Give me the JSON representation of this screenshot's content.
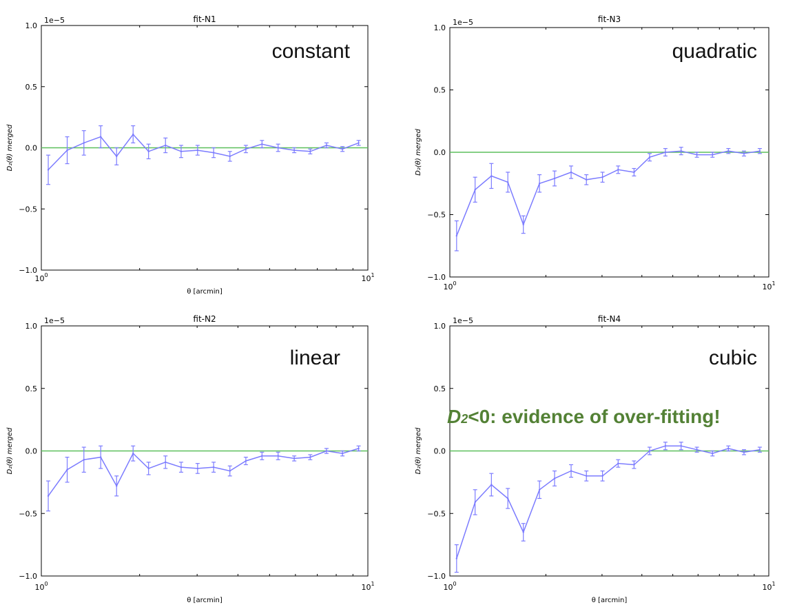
{
  "colors": {
    "series": "#7b7bff",
    "zero_line": "#5cbf5c",
    "axes": "#000000",
    "note": "#538135"
  },
  "note": {
    "symbol": "D",
    "subscript": "2",
    "text": "<0: evidence of over-fitting!"
  },
  "chart_data": [
    {
      "id": "fit-N1",
      "type": "line",
      "title": "fit-N1",
      "label": "constant",
      "xlabel": "θ [arcmin]",
      "ylabel": "D₂(θ) merged",
      "exponent": "1e−5",
      "xscale": "log",
      "xlim": [
        1,
        10
      ],
      "ylim": [
        -1.0,
        1.0
      ],
      "yticks": [
        "−1.0",
        "−0.5",
        "0.0",
        "0.5",
        "1.0"
      ],
      "xticks": [
        {
          "base": "10",
          "exp": "0"
        },
        {
          "base": "10",
          "exp": "1"
        }
      ],
      "x": [
        1.05,
        1.2,
        1.35,
        1.52,
        1.7,
        1.91,
        2.13,
        2.4,
        2.68,
        3.01,
        3.37,
        3.78,
        4.23,
        4.74,
        5.31,
        5.95,
        6.66,
        7.47,
        8.36,
        9.37
      ],
      "y": [
        -0.18,
        -0.02,
        0.04,
        0.09,
        -0.07,
        0.11,
        -0.03,
        0.02,
        -0.03,
        -0.02,
        -0.04,
        -0.07,
        -0.01,
        0.03,
        0.0,
        -0.02,
        -0.03,
        0.02,
        -0.01,
        0.04
      ],
      "yerr": [
        0.12,
        0.11,
        0.1,
        0.09,
        0.07,
        0.07,
        0.06,
        0.06,
        0.05,
        0.04,
        0.04,
        0.04,
        0.03,
        0.03,
        0.03,
        0.02,
        0.02,
        0.02,
        0.02,
        0.02
      ],
      "hline": 0.0
    },
    {
      "id": "fit-N3",
      "type": "line",
      "title": "fit-N3",
      "label": "quadratic",
      "xlabel": "",
      "ylabel": "D₂(θ) merged",
      "exponent": "1e−5",
      "xscale": "log",
      "xlim": [
        1,
        10
      ],
      "ylim": [
        -1.0,
        1.0
      ],
      "yticks": [
        "−1.0",
        "−0.5",
        "0.0",
        "0.5",
        "1.0"
      ],
      "xticks": [
        {
          "base": "10",
          "exp": "0"
        },
        {
          "base": "10",
          "exp": "1"
        }
      ],
      "x": [
        1.05,
        1.2,
        1.35,
        1.52,
        1.7,
        1.91,
        2.13,
        2.4,
        2.68,
        3.01,
        3.37,
        3.78,
        4.23,
        4.74,
        5.31,
        5.95,
        6.66,
        7.47,
        8.36,
        9.37
      ],
      "y": [
        -0.67,
        -0.3,
        -0.19,
        -0.24,
        -0.58,
        -0.25,
        -0.21,
        -0.16,
        -0.22,
        -0.2,
        -0.14,
        -0.16,
        -0.04,
        0.0,
        0.01,
        -0.02,
        -0.02,
        0.01,
        -0.01,
        0.01
      ],
      "yerr": [
        0.12,
        0.1,
        0.1,
        0.08,
        0.07,
        0.07,
        0.06,
        0.05,
        0.04,
        0.04,
        0.03,
        0.03,
        0.03,
        0.03,
        0.03,
        0.02,
        0.02,
        0.02,
        0.02,
        0.02
      ],
      "hline": 0.0
    },
    {
      "id": "fit-N2",
      "type": "line",
      "title": "fit-N2",
      "label": "linear",
      "xlabel": "θ [arcmin]",
      "ylabel": "D₂(θ) merged",
      "exponent": "1e−5",
      "xscale": "log",
      "xlim": [
        1,
        10
      ],
      "ylim": [
        -1.0,
        1.0
      ],
      "yticks": [
        "−1.0",
        "−0.5",
        "0.0",
        "0.5",
        "1.0"
      ],
      "xticks": [
        {
          "base": "10",
          "exp": "0"
        },
        {
          "base": "10",
          "exp": "1"
        }
      ],
      "x": [
        1.05,
        1.2,
        1.35,
        1.52,
        1.7,
        1.91,
        2.13,
        2.4,
        2.68,
        3.01,
        3.37,
        3.78,
        4.23,
        4.74,
        5.31,
        5.95,
        6.66,
        7.47,
        8.36,
        9.37
      ],
      "y": [
        -0.36,
        -0.15,
        -0.07,
        -0.05,
        -0.28,
        -0.02,
        -0.14,
        -0.09,
        -0.13,
        -0.14,
        -0.13,
        -0.16,
        -0.08,
        -0.04,
        -0.04,
        -0.06,
        -0.05,
        0.0,
        -0.02,
        0.02
      ],
      "yerr": [
        0.12,
        0.1,
        0.1,
        0.09,
        0.08,
        0.06,
        0.05,
        0.05,
        0.04,
        0.04,
        0.04,
        0.04,
        0.03,
        0.03,
        0.03,
        0.02,
        0.02,
        0.02,
        0.02,
        0.02
      ],
      "hline": 0.0
    },
    {
      "id": "fit-N4",
      "type": "line",
      "title": "fit-N4",
      "label": "cubic",
      "xlabel": "θ [arcmin]",
      "ylabel": "D₂(θ) merged",
      "exponent": "1e−5",
      "xscale": "log",
      "xlim": [
        1,
        10
      ],
      "ylim": [
        -1.0,
        1.0
      ],
      "yticks": [
        "−1.0",
        "−0.5",
        "0.0",
        "0.5",
        "1.0"
      ],
      "xticks": [
        {
          "base": "10",
          "exp": "0"
        },
        {
          "base": "10",
          "exp": "1"
        }
      ],
      "x": [
        1.05,
        1.2,
        1.35,
        1.52,
        1.7,
        1.91,
        2.13,
        2.4,
        2.68,
        3.01,
        3.37,
        3.78,
        4.23,
        4.74,
        5.31,
        5.95,
        6.66,
        7.47,
        8.36,
        9.37
      ],
      "y": [
        -0.86,
        -0.41,
        -0.27,
        -0.38,
        -0.65,
        -0.31,
        -0.22,
        -0.16,
        -0.2,
        -0.2,
        -0.1,
        -0.11,
        0.0,
        0.04,
        0.04,
        0.01,
        -0.02,
        0.02,
        -0.01,
        0.01
      ],
      "yerr": [
        0.11,
        0.1,
        0.09,
        0.08,
        0.07,
        0.07,
        0.06,
        0.05,
        0.04,
        0.04,
        0.03,
        0.03,
        0.03,
        0.03,
        0.03,
        0.02,
        0.02,
        0.02,
        0.02,
        0.02
      ],
      "hline": 0.0
    }
  ]
}
